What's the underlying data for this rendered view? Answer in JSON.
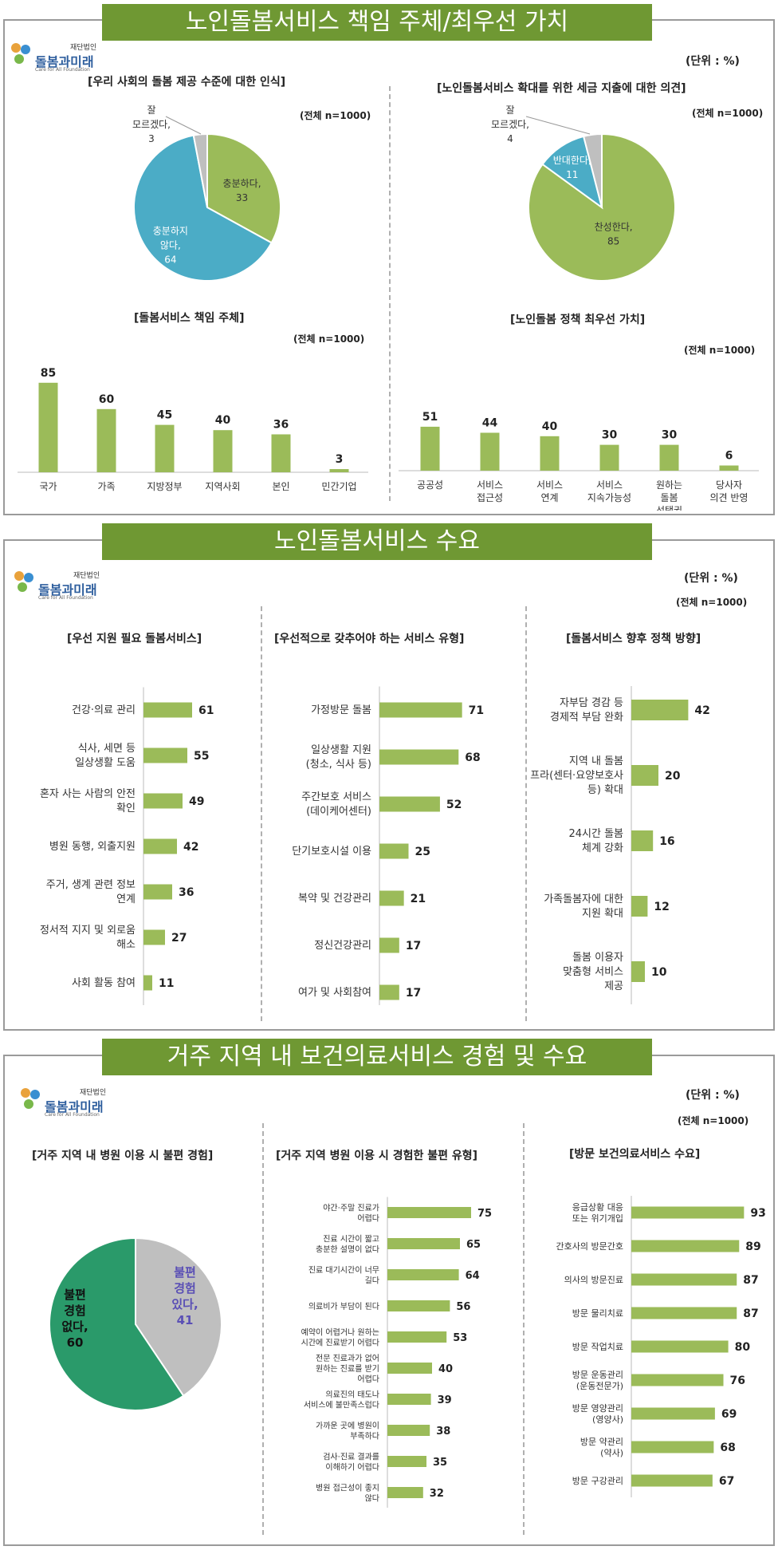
{
  "logo": {
    "name": "돌봄과미래",
    "sub": "재단법인",
    "eng": "Care for All Foundation"
  },
  "sec1": {
    "banner": "노인돌봄서비스 책임 주체/최우선 가치",
    "unit": "(단위 : %)",
    "pie1": {
      "title": "[우리 사회의 돌봄 제공 수준에 대한 인식]",
      "n": "(전체 n=1000)"
    },
    "pie2": {
      "title": "[노인돌봄서비스 확대를 위한 세금 지출에 대한 의견]",
      "n": "(전체 n=1000)"
    },
    "bar1": {
      "title": "[돌봄서비스 책임 주체]",
      "n": "(전체 n=1000)"
    },
    "bar2": {
      "title": "[노인돌봄 정책 최우선 가치]",
      "n": "(전체 n=1000)"
    }
  },
  "sec2": {
    "banner": "노인돌봄서비스 수요",
    "unit": "(단위 : %)",
    "n": "(전체 n=1000)",
    "c1_title": "[우선 지원 필요 돌봄서비스]",
    "c2_title": "[우선적으로 갖추어야 하는 서비스 유형]",
    "c3_title": "[돌봄서비스 향후 정책 방향]"
  },
  "sec3": {
    "banner": "거주 지역 내 보건의료서비스 경험 및 수요",
    "unit": "(단위 : %)",
    "n": "(전체 n=1000)",
    "c1_title": "[거주 지역 내 병원 이용 시 불편 경험]",
    "c2_title": "[거주 지역 병원 이용 시 경험한 불편 유형]",
    "c3_title": "[방문 보건의료서비스 수요]"
  },
  "colors": {
    "green": "#9bbb59",
    "blue": "#4bacc6",
    "gray": "#bfbfbf",
    "dkgreen": "#2a9a6a",
    "banner": "#6f9833"
  },
  "chart_data": [
    {
      "id": "pie1",
      "type": "pie",
      "title": "[우리 사회의 돌봄 제공 수준에 대한 인식]",
      "slices": [
        {
          "label": "충분하다,",
          "value": 33
        },
        {
          "label": "충분하지 않다,",
          "value": 64
        },
        {
          "label": "잘 모르겠다,",
          "value": 3
        }
      ]
    },
    {
      "id": "pie2",
      "type": "pie",
      "title": "[노인돌봄서비스 확대를 위한 세금 지출에 대한 의견]",
      "slices": [
        {
          "label": "찬성한다,",
          "value": 85
        },
        {
          "label": "반대한다,",
          "value": 11
        },
        {
          "label": "잘 모르겠다,",
          "value": 4
        }
      ]
    },
    {
      "id": "bar1",
      "type": "bar",
      "title": "[돌봄서비스 책임 주체]",
      "categories": [
        "국가",
        "가족",
        "지방정부",
        "지역사회",
        "본인",
        "민간기업"
      ],
      "values": [
        85,
        60,
        45,
        40,
        36,
        3
      ],
      "ylim": [
        0,
        100
      ]
    },
    {
      "id": "bar2",
      "type": "bar",
      "title": "[노인돌봄 정책 최우선 가치]",
      "categories": [
        "공공성",
        "서비스 접근성",
        "서비스 연계",
        "서비스 지속가능성",
        "원하는 돌봄 선택권",
        "당사자 의견 반영"
      ],
      "values": [
        51,
        44,
        40,
        30,
        30,
        6
      ],
      "ylim": [
        0,
        100
      ]
    },
    {
      "id": "hb1",
      "type": "bar",
      "orientation": "horizontal",
      "title": "[우선 지원 필요 돌봄서비스]",
      "categories": [
        "건강·의료 관리",
        "식사, 세면 등 일상생활 도움",
        "혼자 사는 사람의 안전 확인",
        "병원 동행, 외출지원",
        "주거, 생계 관련 정보 연계",
        "정서적 지지 및 외로움 해소",
        "사회 활동 참여"
      ],
      "values": [
        61,
        55,
        49,
        42,
        36,
        27,
        11
      ]
    },
    {
      "id": "hb2",
      "type": "bar",
      "orientation": "horizontal",
      "title": "[우선적으로 갖추어야 하는 서비스 유형]",
      "categories": [
        "가정방문 돌봄",
        "일상생활 지원 (청소, 식사 등)",
        "주간보호 서비스 (데이케어센터)",
        "단기보호시설 이용",
        "복약 및 건강관리",
        "정신건강관리",
        "여가 및 사회참여"
      ],
      "values": [
        71,
        68,
        52,
        25,
        21,
        17,
        17
      ]
    },
    {
      "id": "hb3",
      "type": "bar",
      "orientation": "horizontal",
      "title": "[돌봄서비스 향후 정책 방향]",
      "categories": [
        "자부담 경감 등 경제적 부담 완화",
        "지역 내 돌봄 인프라(센터·요양보호사 등) 확대",
        "24시간 돌봄 체계 강화",
        "가족돌봄자에 대한 지원 확대",
        "돌봄 이용자 맞춤형 서비스 제공"
      ],
      "values": [
        42,
        20,
        16,
        12,
        10
      ]
    },
    {
      "id": "pie3",
      "type": "pie",
      "title": "[거주 지역 내 병원 이용 시 불편 경험]",
      "slices": [
        {
          "label": "불편 경험 없다,",
          "value": 60
        },
        {
          "label": "불편 경험 있다,",
          "value": 41
        }
      ]
    },
    {
      "id": "hb4",
      "type": "bar",
      "orientation": "horizontal",
      "title": "[거주 지역 병원 이용 시 경험한 불편 유형]",
      "categories": [
        "야간·주말 진료가 어렵다",
        "진료 시간이 짧고 충분한 설명이 없다",
        "진료 대기시간이 너무 길다",
        "의료비가 부담이 된다",
        "예약이 어렵거나 원하는 시간에 진료받기 어렵다",
        "전문 진료과가 없어 원하는 진료를 받기 어렵다",
        "의료진의 태도나 서비스에 불만족스럽다",
        "가까운 곳에 병원이 부족하다",
        "검사·진료 결과를 이해하기 어렵다",
        "병원 접근성이 좋지 않다"
      ],
      "values": [
        75,
        65,
        64,
        56,
        53,
        40,
        39,
        38,
        35,
        32
      ]
    },
    {
      "id": "hb5",
      "type": "bar",
      "orientation": "horizontal",
      "title": "[방문 보건의료서비스 수요]",
      "categories": [
        "응급상황 대응 또는 위기개입",
        "간호사의 방문간호",
        "의사의 방문진료",
        "방문 물리치료",
        "방문 작업치료",
        "방문 운동관리 (운동전문가)",
        "방문 영양관리 (영양사)",
        "방문 약관리 (약사)",
        "방문 구강관리"
      ],
      "values": [
        93,
        89,
        87,
        87,
        80,
        76,
        69,
        68,
        67
      ]
    }
  ]
}
